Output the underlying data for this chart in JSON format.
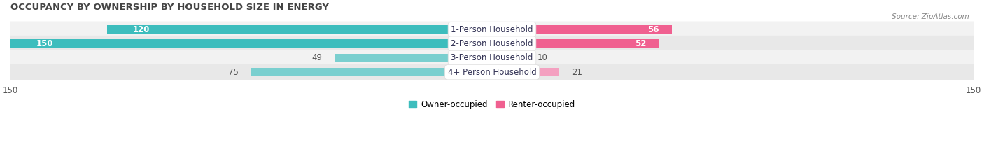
{
  "title": "OCCUPANCY BY OWNERSHIP BY HOUSEHOLD SIZE IN ENERGY",
  "source": "Source: ZipAtlas.com",
  "categories": [
    "1-Person Household",
    "2-Person Household",
    "3-Person Household",
    "4+ Person Household"
  ],
  "owner_values": [
    120,
    150,
    49,
    75
  ],
  "renter_values": [
    56,
    52,
    10,
    21
  ],
  "owner_colors": [
    "#3DBDBD",
    "#3DBDBD",
    "#7ACFCF",
    "#7ACFCF"
  ],
  "renter_colors": [
    "#F06090",
    "#F06090",
    "#F4A0C0",
    "#F4A0C0"
  ],
  "row_bg_colors": [
    "#F2F2F2",
    "#E8E8E8",
    "#F2F2F2",
    "#E8E8E8"
  ],
  "axis_limit": 150,
  "label_fontsize": 8.5,
  "title_fontsize": 9.5,
  "bar_height": 0.62,
  "legend_owner": "Owner-occupied",
  "legend_renter": "Renter-occupied",
  "owner_label_threshold": 80,
  "renter_label_threshold": 40
}
